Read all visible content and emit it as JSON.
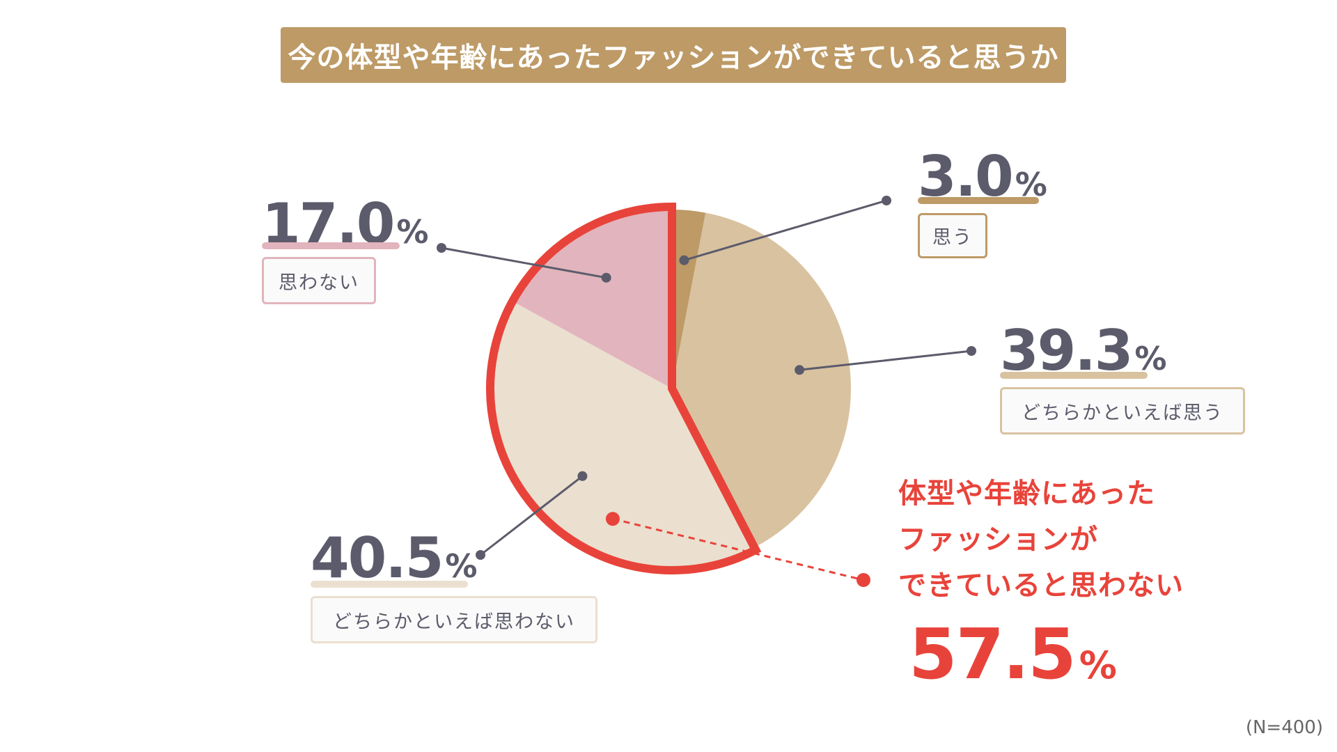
{
  "title": "今の体型や年齢にあったファッションができていると思うか",
  "colors": {
    "title_bg": "#bd9a66",
    "omou": "#bd9a66",
    "dochiraka_omou": "#d9c2a0",
    "dochiraka_omowanai": "#ebdfcf",
    "omowanai": "#e2b4bd",
    "highlight": "#e8433a",
    "leader": "#5b5b6b"
  },
  "chart_data": {
    "type": "pie",
    "title": "今の体型や年齢にあったファッションができていると思うか",
    "unit": "%",
    "slices": [
      {
        "label": "思う",
        "value": 3.0,
        "value_text": "3.0"
      },
      {
        "label": "どちらかといえば思う",
        "value": 39.3,
        "value_text": "39.3"
      },
      {
        "label": "どちらかといえば思わない",
        "value": 40.5,
        "value_text": "40.5"
      },
      {
        "label": "思わない",
        "value": 17.0,
        "value_text": "17.0"
      }
    ],
    "highlight": {
      "lines": [
        "体型や年齢にあった",
        "ファッションが",
        "できていると思わない"
      ],
      "value": 57.5,
      "value_text": "57.5",
      "unit": "%",
      "covers": [
        "どちらかといえば思わない",
        "思わない"
      ]
    },
    "sample_size": "(N=400)"
  }
}
